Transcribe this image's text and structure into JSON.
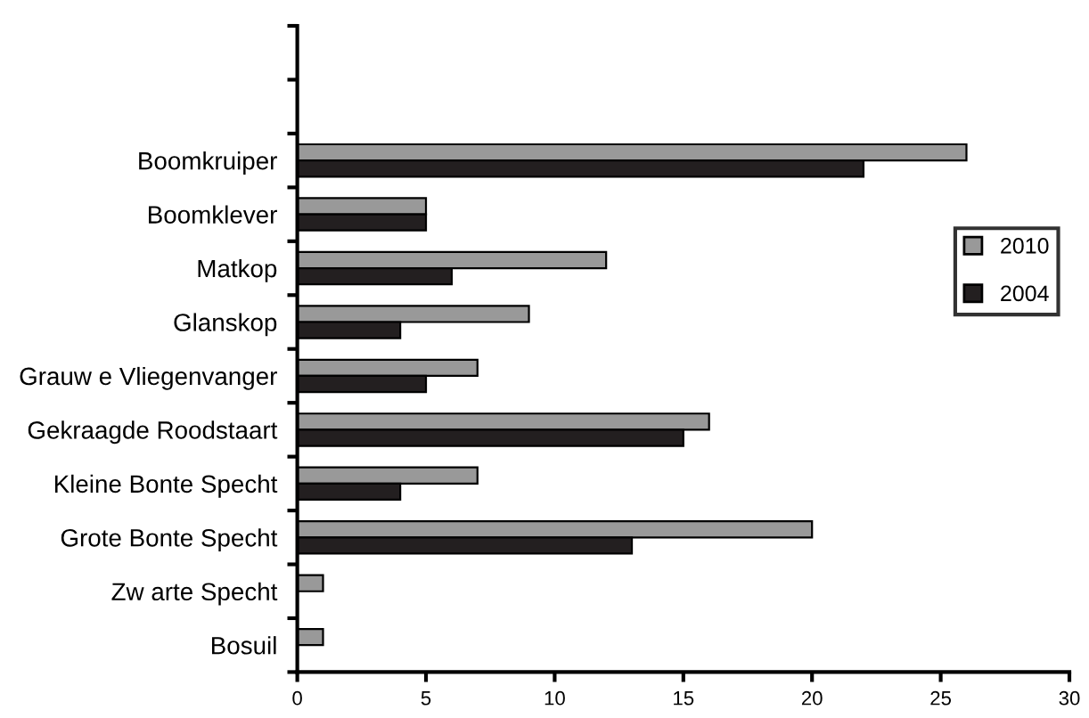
{
  "chart_data": {
    "type": "bar",
    "orientation": "horizontal",
    "categories": [
      null,
      null,
      "Boomkruiper",
      "Boomklever",
      "Matkop",
      "Glanskop",
      "Grauw e Vliegenvanger",
      "Gekraagde Roodstaart",
      "Kleine Bonte Specht",
      "Grote Bonte Specht",
      "Zw arte Specht",
      "Bosuil"
    ],
    "series": [
      {
        "name": "2010",
        "color": "#999999",
        "values": [
          null,
          null,
          26,
          5,
          12,
          9,
          7,
          16,
          7,
          20,
          1,
          1
        ]
      },
      {
        "name": "2004",
        "color": "#231f20",
        "values": [
          null,
          null,
          22,
          5,
          6,
          4,
          5,
          15,
          4,
          13,
          0,
          0
        ]
      }
    ],
    "xlim": [
      0,
      30
    ],
    "xticks": [
      0,
      5,
      10,
      15,
      20,
      25,
      30
    ],
    "grid": false,
    "legend": "right"
  }
}
